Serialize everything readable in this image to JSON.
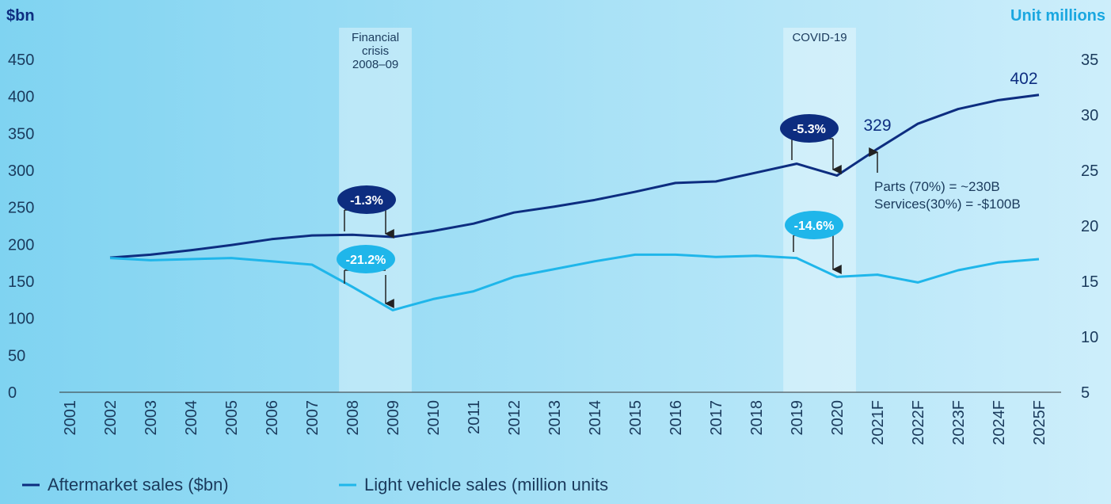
{
  "chart_data": {
    "type": "line",
    "y_label": "$bn",
    "y2_label": "Unit millions",
    "categories": [
      "2001",
      "2002",
      "2003",
      "2004",
      "2005",
      "2006",
      "2007",
      "2008",
      "2009",
      "2010",
      "2011",
      "2012",
      "2013",
      "2014",
      "2015",
      "2016",
      "2017",
      "2018",
      "2019",
      "2020",
      "2021F",
      "2022F",
      "2023F",
      "2024F",
      "2025F"
    ],
    "series": [
      {
        "name": "Aftermarket sales ($bn)",
        "color": "#0d2d80",
        "axis": "y",
        "values": [
          null,
          182,
          186,
          192,
          199,
          207,
          212,
          213,
          210,
          218,
          228,
          243,
          251,
          260,
          271,
          283,
          285,
          297,
          309,
          293,
          329,
          363,
          383,
          395,
          402
        ]
      },
      {
        "name": "Light vehicle sales (million units",
        "color": "#1fb6ea",
        "axis": "y2",
        "values": [
          null,
          17.1,
          16.9,
          17.0,
          17.1,
          16.8,
          16.5,
          14.5,
          12.4,
          13.4,
          14.1,
          15.4,
          16.1,
          16.8,
          17.4,
          17.4,
          17.2,
          17.3,
          17.1,
          15.4,
          15.6,
          14.9,
          16.0,
          16.7,
          17.0
        ]
      }
    ],
    "ylim": [
      0,
      450
    ],
    "yticks": [
      0,
      50,
      100,
      150,
      200,
      250,
      300,
      350,
      400,
      450
    ],
    "y2lim": [
      5,
      35
    ],
    "y2ticks": [
      5,
      10,
      15,
      20,
      25,
      30,
      35
    ],
    "bands": [
      {
        "lines": [
          "Financial",
          "crisis",
          "2008–09"
        ]
      },
      {
        "lines": [
          "COVID-19"
        ]
      }
    ],
    "change_labels": [
      "-1.3%",
      "-21.2%",
      "-5.3%",
      "-14.6%"
    ],
    "note": [
      "Parts (70%) = ~230B",
      "Services(30%) = -$100B"
    ],
    "legend": "bottom-left"
  }
}
